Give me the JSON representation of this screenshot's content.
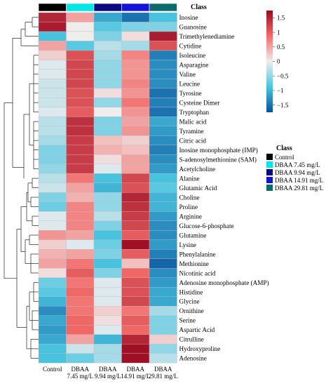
{
  "chart_data": {
    "type": "heatmap",
    "class_title": "Class",
    "legend_title": "Class",
    "colorbar_ticks": [
      "1.5",
      "1",
      "0.5",
      "0",
      "−0.5",
      "−1",
      "−1.5"
    ],
    "colorbar_values": [
      1.5,
      1,
      0.5,
      0,
      -0.5,
      -1,
      -1.5
    ],
    "color_range": [
      -1.75,
      1.75
    ],
    "columns": [
      {
        "line1": "Control",
        "line2": ""
      },
      {
        "line1": "DBAA",
        "line2": "7.45 mg/L"
      },
      {
        "line1": "DBAA",
        "line2": "9.94 mg/L"
      },
      {
        "line1": "DBAA",
        "line2": "14.91 mg/L"
      },
      {
        "line1": "DBAA",
        "line2": "29.81 mg/L"
      }
    ],
    "classes": [
      {
        "name": "Control",
        "color": "#000000"
      },
      {
        "name": "DBAA 7.45 mg/L",
        "color": "#00e5e5"
      },
      {
        "name": "DBAA 9.94 mg/L",
        "color": "#0a0a80"
      },
      {
        "name": "DBAA 14.91 mg/L",
        "color": "#1414d8"
      },
      {
        "name": "DBAA 29.81 mg/L",
        "color": "#0e6b6b"
      }
    ],
    "rows": [
      {
        "name": "Inosine",
        "values": [
          1.5,
          0.5,
          -1.1,
          -1.5,
          -0.9
        ]
      },
      {
        "name": "Guanosine",
        "values": [
          1.6,
          0.0,
          -0.8,
          -0.6,
          -0.6
        ]
      },
      {
        "name": "Trimethylenediamine",
        "values": [
          -0.9,
          0.0,
          -0.6,
          0.1,
          1.6
        ]
      },
      {
        "name": "Cytidine",
        "values": [
          0.5,
          -0.8,
          -0.3,
          -0.4,
          1.1
        ]
      },
      {
        "name": "Isoleucine",
        "values": [
          0.2,
          1.1,
          -0.4,
          0.7,
          -1.4
        ]
      },
      {
        "name": "Asparagine",
        "values": [
          -0.1,
          1.2,
          -0.5,
          0.6,
          -1.3
        ]
      },
      {
        "name": "Valine",
        "values": [
          -0.1,
          1.2,
          -0.5,
          0.6,
          -1.3
        ]
      },
      {
        "name": "Leucine",
        "values": [
          -0.2,
          1.2,
          -0.5,
          0.7,
          -1.3
        ]
      },
      {
        "name": "Tyrosine",
        "values": [
          -0.2,
          1.1,
          0.1,
          0.6,
          -1.5
        ]
      },
      {
        "name": "Cysteine Dimer",
        "values": [
          -0.2,
          1.1,
          -0.5,
          0.8,
          -1.4
        ]
      },
      {
        "name": "Tryptophan",
        "values": [
          -0.1,
          1.0,
          0.0,
          0.6,
          -1.5
        ]
      },
      {
        "name": "Malic acid",
        "values": [
          -0.3,
          1.4,
          -0.6,
          0.5,
          -1.1
        ]
      },
      {
        "name": "Tyramine",
        "values": [
          -0.3,
          1.4,
          -0.6,
          0.6,
          -1.2
        ]
      },
      {
        "name": "Citric acid",
        "values": [
          -0.4,
          1.3,
          0.3,
          0.2,
          -1.3
        ]
      },
      {
        "name": "Inosine monophosphate (IMP)",
        "values": [
          -0.6,
          1.3,
          0.4,
          0.3,
          -1.4
        ]
      },
      {
        "name": "S-adenosylmethionine (SAM)",
        "values": [
          -0.6,
          1.3,
          0.1,
          0.5,
          -1.3
        ]
      },
      {
        "name": "Acetylcholine",
        "values": [
          -0.5,
          1.3,
          -0.1,
          0.5,
          -1.2
        ]
      },
      {
        "name": "Alanine",
        "values": [
          -0.3,
          0.8,
          -0.9,
          1.2,
          -0.9
        ]
      },
      {
        "name": "Glutamic Acid",
        "values": [
          -0.2,
          0.5,
          -1.0,
          1.1,
          -0.8
        ]
      },
      {
        "name": "Choline",
        "values": [
          -0.6,
          0.4,
          -0.5,
          1.5,
          -1.0
        ]
      },
      {
        "name": "Proline",
        "values": [
          -0.7,
          0.7,
          -0.5,
          1.4,
          -1.0
        ]
      },
      {
        "name": "Arginine",
        "values": [
          -0.1,
          0.7,
          -0.3,
          1.3,
          -1.2
        ]
      },
      {
        "name": "Glucose-6-phosphate",
        "values": [
          -0.1,
          0.7,
          -0.6,
          1.2,
          -1.3
        ]
      },
      {
        "name": "Glutamine",
        "values": [
          0.6,
          0.5,
          -0.9,
          1.0,
          -1.3
        ]
      },
      {
        "name": "Lysine",
        "values": [
          0.2,
          -0.1,
          -0.7,
          1.7,
          -1.2
        ]
      },
      {
        "name": "Phenylalanine",
        "values": [
          0.4,
          0.5,
          -0.6,
          1.0,
          -1.4
        ]
      },
      {
        "name": "Methionine",
        "values": [
          0.5,
          0.8,
          -0.9,
          0.3,
          -1.6
        ]
      },
      {
        "name": "Nicotinic acid",
        "values": [
          0.1,
          1.0,
          -0.6,
          0.9,
          -1.3
        ]
      },
      {
        "name": "Adenosine monophosphate (AMP)",
        "values": [
          -0.7,
          0.8,
          -0.1,
          1.1,
          -1.2
        ]
      },
      {
        "name": "Histidine",
        "values": [
          -0.8,
          0.9,
          -0.1,
          1.1,
          -1.1
        ]
      },
      {
        "name": "Glycine",
        "values": [
          -1.0,
          0.8,
          -0.1,
          1.2,
          -1.1
        ]
      },
      {
        "name": "Ornithine",
        "values": [
          -1.3,
          0.8,
          0.2,
          0.8,
          -0.4
        ]
      },
      {
        "name": "Serine",
        "values": [
          -1.1,
          0.9,
          0.1,
          1.0,
          -0.6
        ]
      },
      {
        "name": "Aspartic Acid",
        "values": [
          -1.2,
          0.9,
          -0.1,
          0.9,
          -0.6
        ]
      },
      {
        "name": "Citrulline",
        "values": [
          -1.1,
          0.5,
          -1.0,
          1.5,
          0.2
        ]
      },
      {
        "name": "Hydroxyproline",
        "values": [
          -0.9,
          -0.2,
          -0.4,
          1.7,
          -0.5
        ]
      },
      {
        "name": "Adenosine",
        "values": [
          -0.9,
          -0.7,
          -0.4,
          1.7,
          -0.3
        ]
      }
    ],
    "palette": {
      "negative_end": "#08519c",
      "negative_mid": "#4ac6e0",
      "neutral": "#f0eded",
      "positive_mid": "#f26b68",
      "positive_end": "#9a0a22"
    }
  }
}
